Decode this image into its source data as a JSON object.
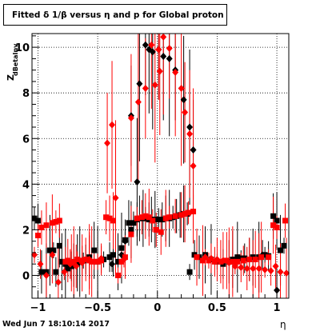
{
  "title": "Fitted δ 1/β versus η and p for Global proton",
  "footer": "Wed Jun  7 18:10:14 2017",
  "chart_data": {
    "type": "scatter",
    "title": "Fitted δ 1/β versus η and p for Global proton",
    "xlabel": "η",
    "ylabel": "Z",
    "ylabel_sub": "dBetaInv",
    "xlim": [
      -1.05,
      1.1
    ],
    "ylim": [
      -1.0,
      10.6
    ],
    "x_ticks": [
      -1,
      -0.5,
      0,
      0.5,
      1
    ],
    "x_tick_labels": [
      "−1",
      "−0.5",
      "0",
      "0.5",
      "1"
    ],
    "y_ticks": [
      0,
      2,
      4,
      6,
      8,
      10
    ],
    "y_tick_labels": [
      "0",
      "2",
      "4",
      "6",
      "8",
      "10"
    ],
    "grid": true,
    "colors": {
      "black_series": "#000000",
      "red_series": "#ff0000"
    },
    "series": [
      {
        "color": "#000000",
        "marker": "square",
        "points": [
          [
            -1.03,
            2.5
          ],
          [
            -1.0,
            2.4
          ],
          [
            -0.97,
            0.15
          ],
          [
            -0.93,
            0.15
          ],
          [
            -0.9,
            1.1
          ],
          [
            -0.87,
            1.1
          ],
          [
            -0.85,
            0.15
          ],
          [
            -0.82,
            1.3
          ],
          [
            -0.8,
            0.6
          ],
          [
            -0.77,
            0.5
          ],
          [
            -0.75,
            0.3
          ],
          [
            -0.72,
            0.4
          ],
          [
            -0.7,
            0.45
          ],
          [
            -0.67,
            0.55
          ],
          [
            -0.65,
            0.6
          ],
          [
            -0.62,
            0.65
          ],
          [
            -0.6,
            0.7
          ],
          [
            -0.57,
            0.8
          ],
          [
            -0.53,
            1.1
          ],
          [
            -0.5,
            0.6
          ],
          [
            -0.45,
            0.7
          ],
          [
            -0.4,
            0.8
          ],
          [
            -0.37,
            0.9
          ],
          [
            -0.33,
            0.6
          ],
          [
            -0.3,
            1.2
          ],
          [
            -0.27,
            1.55
          ],
          [
            -0.24,
            2.3
          ],
          [
            -0.22,
            2.0
          ],
          [
            -0.2,
            2.3
          ],
          [
            -0.17,
            2.45
          ],
          [
            -0.15,
            2.5
          ],
          [
            -0.12,
            2.5
          ],
          [
            -0.1,
            2.5
          ],
          [
            -0.07,
            2.45
          ],
          [
            -0.05,
            2.45
          ],
          [
            -0.02,
            2.45
          ],
          [
            0.01,
            2.45
          ],
          [
            0.04,
            2.45
          ],
          [
            0.07,
            2.5
          ],
          [
            0.1,
            2.5
          ],
          [
            0.13,
            2.55
          ],
          [
            0.16,
            2.6
          ],
          [
            0.19,
            2.65
          ],
          [
            0.22,
            2.7
          ],
          [
            0.25,
            2.7
          ],
          [
            0.27,
            0.15
          ],
          [
            0.31,
            0.9
          ],
          [
            0.35,
            0.8
          ],
          [
            0.4,
            0.9
          ],
          [
            0.45,
            0.7
          ],
          [
            0.5,
            0.6
          ],
          [
            0.55,
            0.5
          ],
          [
            0.6,
            0.6
          ],
          [
            0.63,
            0.7
          ],
          [
            0.67,
            0.8
          ],
          [
            0.7,
            0.75
          ],
          [
            0.73,
            0.75
          ],
          [
            0.77,
            0.7
          ],
          [
            0.8,
            0.8
          ],
          [
            0.85,
            0.8
          ],
          [
            0.9,
            0.9
          ],
          [
            0.93,
            0.85
          ],
          [
            0.97,
            2.6
          ],
          [
            1.0,
            2.4
          ],
          [
            1.03,
            1.1
          ],
          [
            1.06,
            1.3
          ]
        ]
      },
      {
        "color": "#000000",
        "marker": "diamond",
        "points": [
          [
            -0.38,
            0.5
          ],
          [
            -0.3,
            0.9
          ],
          [
            -0.27,
            1.5
          ],
          [
            -0.22,
            7.0
          ],
          [
            -0.17,
            4.1
          ],
          [
            -0.15,
            8.4
          ],
          [
            -0.1,
            10.1
          ],
          [
            -0.07,
            9.9
          ],
          [
            -0.04,
            9.8
          ],
          [
            0.01,
            9.9
          ],
          [
            0.05,
            9.6
          ],
          [
            0.1,
            9.5
          ],
          [
            0.15,
            9.0
          ],
          [
            0.22,
            7.7
          ],
          [
            0.27,
            6.5
          ],
          [
            0.3,
            5.5
          ],
          [
            0.88,
            0.9
          ],
          [
            1.0,
            -0.65
          ]
        ]
      },
      {
        "color": "#ff0000",
        "marker": "square",
        "points": [
          [
            -1.0,
            1.75
          ],
          [
            -0.97,
            2.1
          ],
          [
            -0.93,
            2.2
          ],
          [
            -0.88,
            2.3
          ],
          [
            -0.85,
            2.35
          ],
          [
            -0.82,
            2.4
          ],
          [
            -0.77,
            0.6
          ],
          [
            -0.75,
            0.65
          ],
          [
            -0.72,
            0.55
          ],
          [
            -0.7,
            0.6
          ],
          [
            -0.67,
            0.7
          ],
          [
            -0.63,
            0.65
          ],
          [
            -0.6,
            0.7
          ],
          [
            -0.57,
            0.65
          ],
          [
            -0.55,
            0.6
          ],
          [
            -0.5,
            0.6
          ],
          [
            -0.47,
            0.65
          ],
          [
            -0.43,
            2.55
          ],
          [
            -0.4,
            2.5
          ],
          [
            -0.37,
            2.4
          ],
          [
            -0.33,
            0.0
          ],
          [
            -0.3,
            0.6
          ],
          [
            -0.27,
            0.8
          ],
          [
            -0.22,
            1.8
          ],
          [
            -0.17,
            2.5
          ],
          [
            -0.13,
            2.55
          ],
          [
            -0.1,
            2.6
          ],
          [
            -0.07,
            2.55
          ],
          [
            -0.04,
            2.4
          ],
          [
            -0.01,
            2.0
          ],
          [
            0.03,
            1.9
          ],
          [
            0.07,
            2.5
          ],
          [
            0.1,
            2.55
          ],
          [
            0.15,
            2.6
          ],
          [
            0.2,
            2.65
          ],
          [
            0.23,
            2.7
          ],
          [
            0.26,
            2.75
          ],
          [
            0.3,
            2.8
          ],
          [
            0.33,
            0.8
          ],
          [
            0.38,
            0.65
          ],
          [
            0.43,
            0.65
          ],
          [
            0.48,
            0.6
          ],
          [
            0.53,
            0.6
          ],
          [
            0.58,
            0.65
          ],
          [
            0.63,
            0.6
          ],
          [
            0.67,
            0.6
          ],
          [
            0.72,
            0.65
          ],
          [
            0.77,
            0.7
          ],
          [
            0.82,
            0.7
          ],
          [
            0.87,
            0.8
          ],
          [
            0.93,
            0.8
          ],
          [
            0.97,
            2.2
          ],
          [
            1.0,
            2.1
          ],
          [
            1.07,
            2.4
          ]
        ]
      },
      {
        "color": "#ff0000",
        "marker": "diamond",
        "points": [
          [
            -1.03,
            0.9
          ],
          [
            -0.98,
            0.5
          ],
          [
            -0.93,
            0.0
          ],
          [
            -0.88,
            0.9
          ],
          [
            -0.83,
            -0.3
          ],
          [
            -0.78,
            0.15
          ],
          [
            -0.73,
            0.5
          ],
          [
            -0.68,
            0.4
          ],
          [
            -0.63,
            0.55
          ],
          [
            -0.57,
            0.7
          ],
          [
            -0.53,
            0.6
          ],
          [
            -0.47,
            0.75
          ],
          [
            -0.42,
            5.8
          ],
          [
            -0.38,
            6.6
          ],
          [
            -0.35,
            3.4
          ],
          [
            -0.28,
            0.7
          ],
          [
            -0.22,
            6.9
          ],
          [
            -0.16,
            7.6
          ],
          [
            -0.1,
            8.2
          ],
          [
            -0.05,
            10.1
          ],
          [
            -0.02,
            8.35
          ],
          [
            0.01,
            9.9
          ],
          [
            0.02,
            8.95
          ],
          [
            0.05,
            10.45
          ],
          [
            0.1,
            9.95
          ],
          [
            0.15,
            8.9
          ],
          [
            0.2,
            8.2
          ],
          [
            0.23,
            7.15
          ],
          [
            0.27,
            6.2
          ],
          [
            0.3,
            4.8
          ],
          [
            0.4,
            0.8
          ],
          [
            0.45,
            0.75
          ],
          [
            0.5,
            0.7
          ],
          [
            0.55,
            0.65
          ],
          [
            0.6,
            0.55
          ],
          [
            0.65,
            0.4
          ],
          [
            0.7,
            0.35
          ],
          [
            0.75,
            0.3
          ],
          [
            0.8,
            0.3
          ],
          [
            0.85,
            0.3
          ],
          [
            0.9,
            0.25
          ],
          [
            0.95,
            0.2
          ],
          [
            0.99,
            0.4
          ],
          [
            1.03,
            0.15
          ],
          [
            1.08,
            0.1
          ]
        ]
      }
    ]
  }
}
